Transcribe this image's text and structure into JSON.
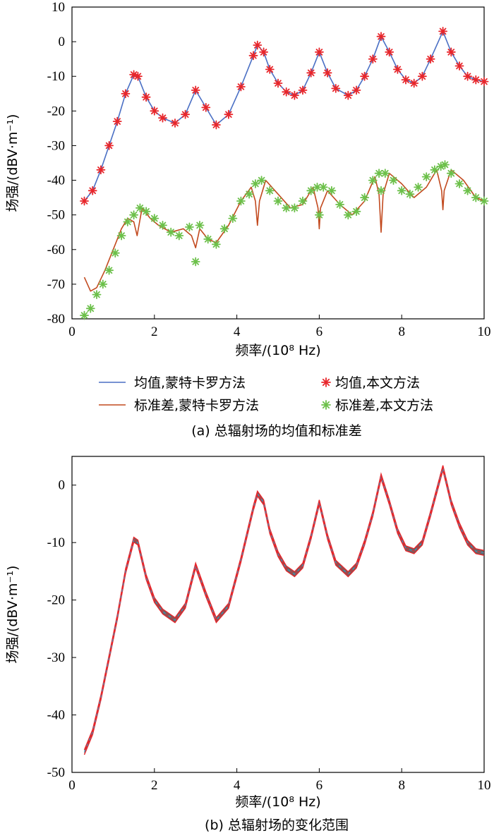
{
  "chart_data": [
    {
      "type": "line",
      "caption": "(a) 总辐射场的均值和标准差",
      "xlabel": "频率/(10⁸ Hz)",
      "ylabel": "场强/(dBV·m⁻¹)",
      "xlim": [
        0,
        10
      ],
      "ylim": [
        -80,
        10
      ],
      "xticks": [
        "0",
        "2",
        "4",
        "6",
        "8",
        "10"
      ],
      "yticks": [
        "10",
        "0",
        "-10",
        "-20",
        "-30",
        "-40",
        "-50",
        "-60",
        "-70",
        "-80"
      ],
      "legend": {
        "position": "bottom",
        "entries": [
          "均值,蒙特卡罗方法",
          "均值,本文方法",
          "标准差,蒙特卡罗方法",
          "标准差,本文方法"
        ]
      },
      "colors": {
        "mean_mc": "#4a6fc4",
        "mean_pm": "#e8262b",
        "std_mc": "#c24a1f",
        "std_pm": "#6cc04a"
      },
      "series": [
        {
          "name": "均值,蒙特卡罗方法",
          "style": "line",
          "x": [
            0.3,
            0.5,
            0.7,
            0.9,
            1.1,
            1.3,
            1.5,
            1.6,
            1.8,
            2.0,
            2.2,
            2.5,
            2.75,
            3.0,
            3.25,
            3.5,
            3.8,
            4.1,
            4.4,
            4.5,
            4.65,
            4.8,
            5.0,
            5.2,
            5.4,
            5.6,
            5.8,
            6.0,
            6.2,
            6.4,
            6.7,
            6.9,
            7.1,
            7.3,
            7.5,
            7.7,
            7.9,
            8.1,
            8.3,
            8.5,
            8.7,
            9.0,
            9.2,
            9.4,
            9.6,
            9.8,
            10.0
          ],
          "y": [
            -46,
            -43,
            -37,
            -30,
            -23,
            -15,
            -9.5,
            -10,
            -16,
            -20,
            -22,
            -23.5,
            -21,
            -14,
            -19,
            -24,
            -21,
            -13,
            -4,
            -1,
            -3,
            -8,
            -12,
            -14.5,
            -15.5,
            -14,
            -9,
            -3,
            -9,
            -13.5,
            -15.5,
            -14,
            -10,
            -5,
            1.5,
            -3,
            -8,
            -11,
            -12,
            -10,
            -5,
            3,
            -3,
            -7,
            -10,
            -11,
            -11.5
          ]
        },
        {
          "name": "均值,本文方法",
          "style": "marker",
          "x": [
            0.3,
            0.5,
            0.7,
            0.9,
            1.1,
            1.3,
            1.5,
            1.6,
            1.8,
            2.0,
            2.2,
            2.5,
            2.75,
            3.0,
            3.25,
            3.5,
            3.8,
            4.1,
            4.4,
            4.5,
            4.65,
            4.8,
            5.0,
            5.2,
            5.4,
            5.6,
            5.8,
            6.0,
            6.2,
            6.4,
            6.7,
            6.9,
            7.1,
            7.3,
            7.5,
            7.7,
            7.9,
            8.1,
            8.3,
            8.5,
            8.7,
            9.0,
            9.2,
            9.4,
            9.6,
            9.8,
            10.0
          ],
          "y": [
            -46,
            -43,
            -37,
            -30,
            -23,
            -15,
            -9.5,
            -10,
            -16,
            -20,
            -22,
            -23.5,
            -21,
            -14,
            -19,
            -24,
            -21,
            -13,
            -4,
            -1,
            -3,
            -8,
            -12,
            -14.5,
            -15.5,
            -14,
            -9,
            -3,
            -9,
            -13.5,
            -15.5,
            -14,
            -10,
            -5,
            1.5,
            -3,
            -8,
            -11,
            -12,
            -10,
            -5,
            3,
            -3,
            -7,
            -10,
            -11,
            -11.5
          ]
        },
        {
          "name": "标准差,蒙特卡罗方法",
          "style": "line",
          "x": [
            0.3,
            0.45,
            0.6,
            0.8,
            1.0,
            1.2,
            1.35,
            1.5,
            1.58,
            1.7,
            1.9,
            2.1,
            2.4,
            2.7,
            2.9,
            3.0,
            3.1,
            3.3,
            3.5,
            3.8,
            4.1,
            4.35,
            4.45,
            4.5,
            4.55,
            4.7,
            5.0,
            5.3,
            5.6,
            5.85,
            5.97,
            6.0,
            6.03,
            6.2,
            6.5,
            6.8,
            7.1,
            7.35,
            7.45,
            7.5,
            7.55,
            7.7,
            8.0,
            8.3,
            8.6,
            8.85,
            8.97,
            9.0,
            9.03,
            9.2,
            9.5,
            9.8,
            10.0
          ],
          "y": [
            -68,
            -72,
            -71,
            -66,
            -60,
            -54,
            -51,
            -52,
            -56,
            -48,
            -51,
            -53,
            -55,
            -54,
            -56,
            -59.5,
            -54,
            -57,
            -58,
            -53,
            -46,
            -42,
            -46,
            -53,
            -46,
            -40,
            -44,
            -48,
            -47,
            -42,
            -48,
            -54,
            -48,
            -43,
            -47,
            -50,
            -46,
            -39,
            -44,
            -55,
            -44,
            -38,
            -41,
            -45,
            -42,
            -37,
            -43,
            -48.5,
            -43,
            -37,
            -40,
            -45,
            -46
          ]
        },
        {
          "name": "标准差,本文方法",
          "style": "marker",
          "x": [
            0.3,
            0.45,
            0.6,
            0.75,
            0.9,
            1.05,
            1.2,
            1.35,
            1.5,
            1.65,
            1.8,
            2.0,
            2.2,
            2.4,
            2.6,
            2.85,
            3.0,
            3.1,
            3.3,
            3.5,
            3.7,
            3.9,
            4.1,
            4.3,
            4.45,
            4.6,
            4.8,
            5.0,
            5.2,
            5.4,
            5.6,
            5.8,
            5.95,
            6.0,
            6.1,
            6.3,
            6.5,
            6.7,
            6.9,
            7.1,
            7.3,
            7.45,
            7.5,
            7.6,
            7.8,
            8.0,
            8.2,
            8.4,
            8.6,
            8.8,
            8.95,
            9.05,
            9.2,
            9.4,
            9.6,
            9.8,
            10.0
          ],
          "y": [
            -79,
            -77,
            -73,
            -70,
            -66,
            -61,
            -56,
            -52,
            -50,
            -48,
            -49,
            -51,
            -53,
            -55,
            -56,
            -53.5,
            -63.5,
            -53,
            -57,
            -58.5,
            -54,
            -51,
            -46,
            -44,
            -41,
            -40,
            -43,
            -46,
            -48,
            -48,
            -46,
            -43,
            -42,
            -50,
            -42,
            -43,
            -47,
            -50,
            -49,
            -45,
            -40,
            -38,
            -43,
            -38,
            -40,
            -43,
            -44,
            -42,
            -39,
            -37,
            -36,
            -35.5,
            -38,
            -41,
            -43,
            -45,
            -46
          ]
        }
      ]
    },
    {
      "type": "area",
      "caption": "(b) 总辐射场的变化范围",
      "xlabel": "频率/(10⁸ Hz)",
      "ylabel": "场强/(dBV·m⁻¹)",
      "xlim": [
        0,
        10
      ],
      "ylim": [
        -50,
        5
      ],
      "xticks": [
        "0",
        "2",
        "4",
        "6",
        "8",
        "10"
      ],
      "yticks": [
        "0",
        "-10",
        "-20",
        "-30",
        "-40",
        "-50"
      ],
      "colors": {
        "band": "#4a4a4a",
        "envelope": "#e8262b",
        "center": "#4a90b8"
      },
      "x": [
        0.3,
        0.5,
        0.7,
        0.9,
        1.1,
        1.3,
        1.5,
        1.6,
        1.8,
        2.0,
        2.2,
        2.5,
        2.75,
        3.0,
        3.25,
        3.5,
        3.8,
        4.1,
        4.4,
        4.5,
        4.65,
        4.8,
        5.0,
        5.2,
        5.4,
        5.6,
        5.8,
        6.0,
        6.2,
        6.4,
        6.7,
        6.9,
        7.1,
        7.3,
        7.5,
        7.7,
        7.9,
        8.1,
        8.3,
        8.5,
        8.7,
        9.0,
        9.2,
        9.4,
        9.6,
        9.8,
        10.0
      ],
      "y": [
        -46.5,
        -43,
        -37,
        -30,
        -23,
        -15,
        -9.5,
        -10,
        -16,
        -20,
        -22,
        -23.5,
        -21,
        -14,
        -19,
        -23.5,
        -21,
        -13,
        -4,
        -1.5,
        -3,
        -8,
        -12,
        -14.5,
        -15.5,
        -14,
        -9,
        -3,
        -9,
        -13.5,
        -15.5,
        -14,
        -10,
        -5,
        1.5,
        -3,
        -8,
        -11,
        -11.5,
        -10,
        -5,
        3,
        -3,
        -7,
        -10,
        -11.5,
        -11.8
      ]
    }
  ]
}
